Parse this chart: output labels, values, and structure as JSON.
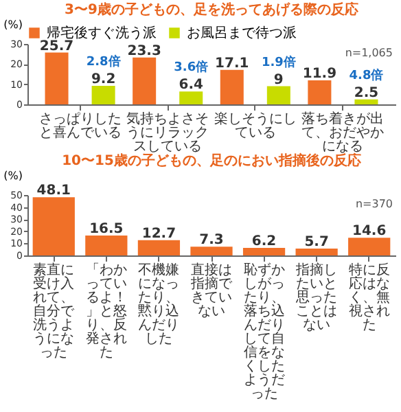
{
  "chart_data": [
    {
      "type": "bar",
      "title": "3〜9歳の子どもの、足を洗ってあげる際の反応",
      "ylabel": "(%)",
      "categories": [
        "さっぱりしたと喜んでいる",
        "気持ちよさそうにリラックスしている",
        "楽しそうにしている",
        "落ち着きが出て、おだやかになる"
      ],
      "series": [
        {
          "name": "帰宅後すぐ洗う派",
          "color": "#f07028",
          "values": [
            25.7,
            23.3,
            17.1,
            11.9
          ]
        },
        {
          "name": "お風呂まで待つ派",
          "color": "#c8dc00",
          "values": [
            9.2,
            6.4,
            9.0,
            2.5
          ]
        }
      ],
      "ylim": [
        0,
        30
      ],
      "yticks": [
        0,
        10,
        20,
        30
      ],
      "data_labels": true,
      "grid": false,
      "legend": "top",
      "annotations": [
        "2.8倍",
        "3.6倍",
        "1.9倍",
        "4.8倍",
        "n=1,065"
      ]
    },
    {
      "type": "bar",
      "title": "10〜15歳の子どもの、足のにおい指摘後の反応",
      "ylabel": "(%)",
      "categories": [
        "素直に受け入れて、自分で洗うようになった",
        "「わかっているよ！」と怒り、反発された",
        "不機嫌になったり、黙り込んだりした",
        "直接は指摘できていない",
        "恥ずかしがったり、落ち込んだりして自信をなくしたようだった",
        "指摘したいと思ったことはない",
        "特に反応はなく、無視された"
      ],
      "series": [
        {
          "color": "#f07028",
          "values": [
            48.1,
            16.5,
            12.7,
            7.3,
            6.2,
            5.7,
            14.6
          ]
        }
      ],
      "ylim": [
        0,
        50
      ],
      "yticks": [
        0,
        10,
        20,
        30,
        40,
        50
      ],
      "data_labels": true,
      "grid": false,
      "annotations": [
        "n=370"
      ]
    }
  ]
}
